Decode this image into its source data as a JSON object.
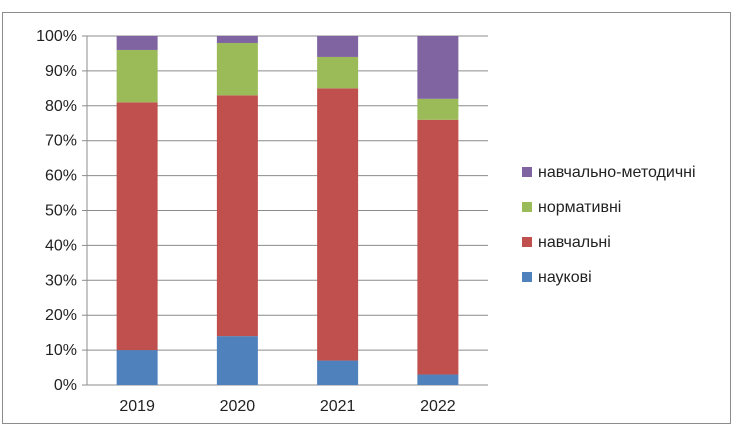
{
  "chart_data": {
    "type": "bar",
    "stacked": true,
    "title": "",
    "xlabel": "",
    "ylabel": "",
    "categories": [
      "2019",
      "2020",
      "2021",
      "2022"
    ],
    "ylim": [
      0,
      100
    ],
    "yticks": [
      "0%",
      "10%",
      "20%",
      "30%",
      "40%",
      "50%",
      "60%",
      "70%",
      "80%",
      "90%",
      "100%"
    ],
    "grid": true,
    "legend_position": "right",
    "series": [
      {
        "name": "наукові",
        "color": "#4f81bd",
        "values": [
          10,
          14,
          7,
          3
        ]
      },
      {
        "name": "навчальні",
        "color": "#c0504d",
        "values": [
          71,
          69,
          78,
          73
        ]
      },
      {
        "name": "нормативні",
        "color": "#9bbb59",
        "values": [
          15,
          15,
          9,
          6
        ]
      },
      {
        "name": "навчально-методичні",
        "color": "#8064a2",
        "values": [
          4,
          2,
          6,
          18
        ]
      }
    ]
  }
}
